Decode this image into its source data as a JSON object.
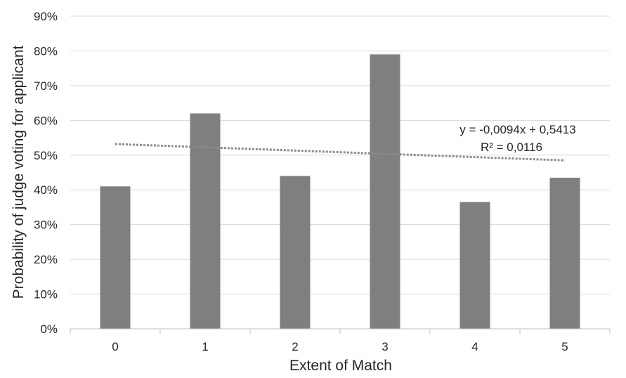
{
  "chart_data": {
    "type": "bar",
    "categories": [
      "0",
      "1",
      "2",
      "3",
      "4",
      "5"
    ],
    "values": [
      0.41,
      0.62,
      0.44,
      0.79,
      0.365,
      0.435
    ],
    "xlabel": "Extent of Match",
    "ylabel": "Probability of judge voting for applicant",
    "ylim": [
      0,
      0.9
    ],
    "yticks": [
      "0%",
      "10%",
      "20%",
      "30%",
      "40%",
      "50%",
      "60%",
      "70%",
      "80%",
      "90%"
    ],
    "grid": true,
    "bar_color": "#7f7f81",
    "trendline": {
      "type": "linear",
      "slope": -0.0094,
      "intercept": 0.5413,
      "equation": "y = -0,0094x + 0,5413",
      "r2_label": "R² = 0,0116",
      "color": "#8c8c8c"
    }
  }
}
